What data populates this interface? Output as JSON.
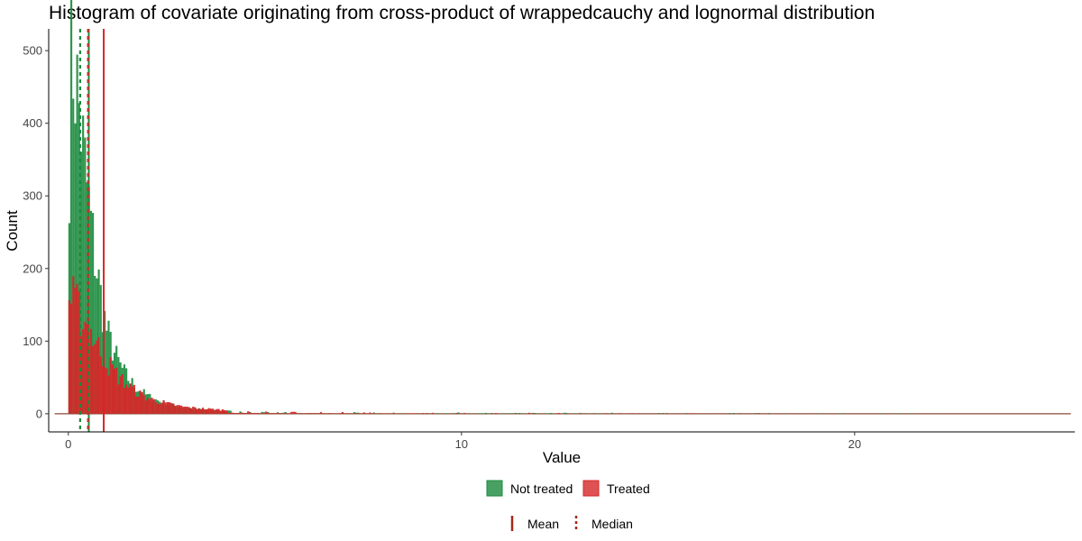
{
  "chart_data": {
    "type": "bar",
    "title": "Histogram of covariate originating from cross-product of wrappedcauchy and lognormal distribution",
    "xlabel": "Value",
    "ylabel": "Count",
    "xlim": [
      -0.5,
      25.6
    ],
    "ylim": [
      -25,
      530
    ],
    "x_ticks": [
      0,
      10,
      20
    ],
    "y_ticks": [
      0,
      100,
      200,
      300,
      400,
      500
    ],
    "grid": false,
    "bin_width": 0.05,
    "x_max": 25.5,
    "series": [
      {
        "name": "Not treated",
        "color": "#1a8a3c",
        "peak_x": 0.1,
        "peak_count": 500,
        "profile": [
          {
            "x": 0.0,
            "count": 245
          },
          {
            "x": 0.05,
            "count": 500
          },
          {
            "x": 0.15,
            "count": 480
          },
          {
            "x": 0.3,
            "count": 410
          },
          {
            "x": 0.5,
            "count": 300
          },
          {
            "x": 0.75,
            "count": 190
          },
          {
            "x": 1.0,
            "count": 110
          },
          {
            "x": 1.5,
            "count": 50
          },
          {
            "x": 2.0,
            "count": 25
          },
          {
            "x": 3.0,
            "count": 8
          },
          {
            "x": 5.0,
            "count": 2
          },
          {
            "x": 25.5,
            "count": 0
          }
        ],
        "mean": 0.52,
        "median": 0.3
      },
      {
        "name": "Treated",
        "color": "#d62728",
        "peak_x": 0.05,
        "peak_count": 160,
        "profile": [
          {
            "x": 0.0,
            "count": 150
          },
          {
            "x": 0.05,
            "count": 160
          },
          {
            "x": 0.3,
            "count": 140
          },
          {
            "x": 0.6,
            "count": 110
          },
          {
            "x": 1.0,
            "count": 70
          },
          {
            "x": 1.5,
            "count": 40
          },
          {
            "x": 2.0,
            "count": 22
          },
          {
            "x": 3.0,
            "count": 9
          },
          {
            "x": 5.0,
            "count": 3
          },
          {
            "x": 10.0,
            "count": 1
          },
          {
            "x": 25.5,
            "count": 0
          }
        ],
        "mean": 0.9,
        "median": 0.5
      }
    ],
    "legend": {
      "placement": "bottom",
      "fill_items": [
        "Not treated",
        "Treated"
      ],
      "line_items": [
        "Mean",
        "Median"
      ]
    }
  },
  "colors": {
    "not_treated": "#1a8a3c",
    "treated": "#d62728",
    "legend_line": "#a52a1a",
    "axis": "#000000"
  }
}
